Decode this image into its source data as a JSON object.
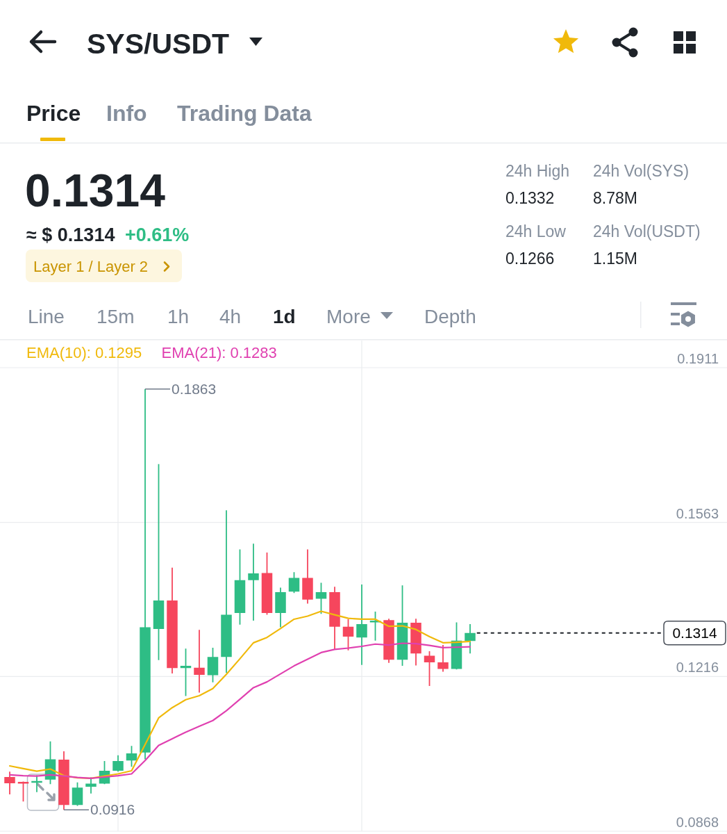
{
  "chart_data": {
    "type": "candlestick",
    "title": "SYS/USDT",
    "categories": [
      null,
      null,
      null,
      null,
      null,
      null,
      null,
      null,
      null,
      null,
      null,
      null,
      null,
      null,
      null,
      null,
      null,
      null,
      null,
      null,
      null,
      null,
      null,
      null,
      null,
      null,
      null,
      null,
      null,
      null,
      null,
      null,
      null,
      null,
      null
    ],
    "ohlc": [
      [
        0.099,
        0.1002,
        0.0951,
        0.0976
      ],
      [
        0.0979,
        0.098,
        0.0935,
        0.0975
      ],
      [
        0.0977,
        0.0994,
        0.0956,
        0.0981
      ],
      [
        0.0984,
        0.107,
        0.0974,
        0.103
      ],
      [
        0.1029,
        0.1048,
        0.0916,
        0.0927
      ],
      [
        0.0927,
        0.0978,
        0.0925,
        0.0966
      ],
      [
        0.0968,
        0.0989,
        0.0953,
        0.0975
      ],
      [
        0.0975,
        0.1026,
        0.0974,
        0.1004
      ],
      [
        0.1004,
        0.1039,
        0.1002,
        0.1026
      ],
      [
        0.1027,
        0.106,
        0.1013,
        0.1043
      ],
      [
        0.1045,
        0.1863,
        0.103,
        0.1327
      ],
      [
        0.1323,
        0.1694,
        0.1253,
        0.1387
      ],
      [
        0.1387,
        0.1461,
        0.1223,
        0.1235
      ],
      [
        0.1235,
        0.1279,
        0.1172,
        0.124
      ],
      [
        0.1236,
        0.1321,
        0.118,
        0.122
      ],
      [
        0.1219,
        0.1281,
        0.1203,
        0.126
      ],
      [
        0.126,
        0.159,
        0.1224,
        0.1355
      ],
      [
        0.1359,
        0.1502,
        0.1333,
        0.1433
      ],
      [
        0.1433,
        0.1515,
        0.1342,
        0.1448
      ],
      [
        0.1449,
        0.1495,
        0.1355,
        0.1359
      ],
      [
        0.1359,
        0.1416,
        0.1327,
        0.1406
      ],
      [
        0.1407,
        0.1451,
        0.1404,
        0.1438
      ],
      [
        0.1438,
        0.1502,
        0.138,
        0.1389
      ],
      [
        0.1391,
        0.1427,
        0.1357,
        0.1406
      ],
      [
        0.1406,
        0.1418,
        0.1277,
        0.1328
      ],
      [
        0.1328,
        0.1345,
        0.1275,
        0.1306
      ],
      [
        0.1304,
        0.1423,
        0.1242,
        0.1334
      ],
      [
        0.1338,
        0.1362,
        0.1297,
        0.1342
      ],
      [
        0.1343,
        0.1346,
        0.1247,
        0.1254
      ],
      [
        0.1254,
        0.1421,
        0.124,
        0.1337
      ],
      [
        0.1337,
        0.1346,
        0.1241,
        0.1268
      ],
      [
        0.1263,
        0.1273,
        0.1195,
        0.1248
      ],
      [
        0.1248,
        0.1287,
        0.1227,
        0.1233
      ],
      [
        0.1233,
        0.1338,
        0.1232,
        0.1297
      ],
      [
        0.1296,
        0.1334,
        0.1268,
        0.1314
      ]
    ],
    "colors": [
      "#f6465d",
      "#f6465d",
      "#2ebd85",
      "#2ebd85",
      "#f6465d",
      "#2ebd85",
      "#2ebd85",
      "#2ebd85",
      "#2ebd85",
      "#2ebd85",
      "#2ebd85",
      "#2ebd85",
      "#f6465d",
      "#2ebd85",
      "#f6465d",
      "#2ebd85",
      "#2ebd85",
      "#2ebd85",
      "#2ebd85",
      "#f6465d",
      "#2ebd85",
      "#2ebd85",
      "#f6465d",
      "#2ebd85",
      "#f6465d",
      "#f6465d",
      "#2ebd85",
      "#2ebd85",
      "#f6465d",
      "#2ebd85",
      "#f6465d",
      "#f6465d",
      "#f6465d",
      "#2ebd85",
      "#2ebd85"
    ],
    "series": [
      {
        "name": "EMA(10): 0.1295",
        "type": "line",
        "color": "#f0b90b",
        "values": [
          0.1015,
          0.1009,
          0.1003,
          0.1008,
          0.0993,
          0.0988,
          0.0987,
          0.0992,
          0.0997,
          0.1004,
          0.1063,
          0.1123,
          0.1146,
          0.1164,
          0.1173,
          0.1189,
          0.1221,
          0.1256,
          0.1292,
          0.1304,
          0.1324,
          0.1345,
          0.1352,
          0.1363,
          0.1355,
          0.1347,
          0.1345,
          0.1345,
          0.1329,
          0.133,
          0.1322,
          0.1306,
          0.1292,
          0.1293,
          0.1295
        ]
      },
      {
        "name": "EMA(21): 0.1283",
        "type": "line",
        "color": "#e040b0",
        "values": [
          0.0995,
          0.0993,
          0.0992,
          0.0995,
          0.0992,
          0.0989,
          0.0987,
          0.099,
          0.0993,
          0.0997,
          0.1027,
          0.1061,
          0.1076,
          0.1091,
          0.1104,
          0.1117,
          0.1139,
          0.1165,
          0.1191,
          0.1204,
          0.1222,
          0.124,
          0.1255,
          0.127,
          0.1277,
          0.128,
          0.1284,
          0.1289,
          0.1287,
          0.1291,
          0.129,
          0.1286,
          0.1281,
          0.1282,
          0.1283
        ]
      }
    ],
    "ylim": [
      0.0868,
      0.1972
    ],
    "yticks": [
      0.0868,
      0.1216,
      0.1563,
      0.1911
    ],
    "tick_labels": "y",
    "grid": true,
    "legend": "top",
    "ref_lines": [
      {
        "axis": "y",
        "value": 0.1314,
        "label": "0.1314",
        "line_style": "dashed",
        "color": "#1e2329"
      }
    ],
    "annotations": [
      "Price",
      "Info",
      "Trading Data",
      "0.1314",
      "≈ $ 0.1314",
      "+0.61%",
      "Layer 1 / Layer 2",
      "24h High",
      "24h Vol(SYS)",
      "0.1332",
      "8.78M",
      "24h Low",
      "24h Vol(USDT)",
      "0.1266",
      "1.15M",
      "Line",
      "15m",
      "1h",
      "4h",
      "1d",
      "More",
      "Depth",
      "0.1863",
      "0.0916"
    ]
  }
}
